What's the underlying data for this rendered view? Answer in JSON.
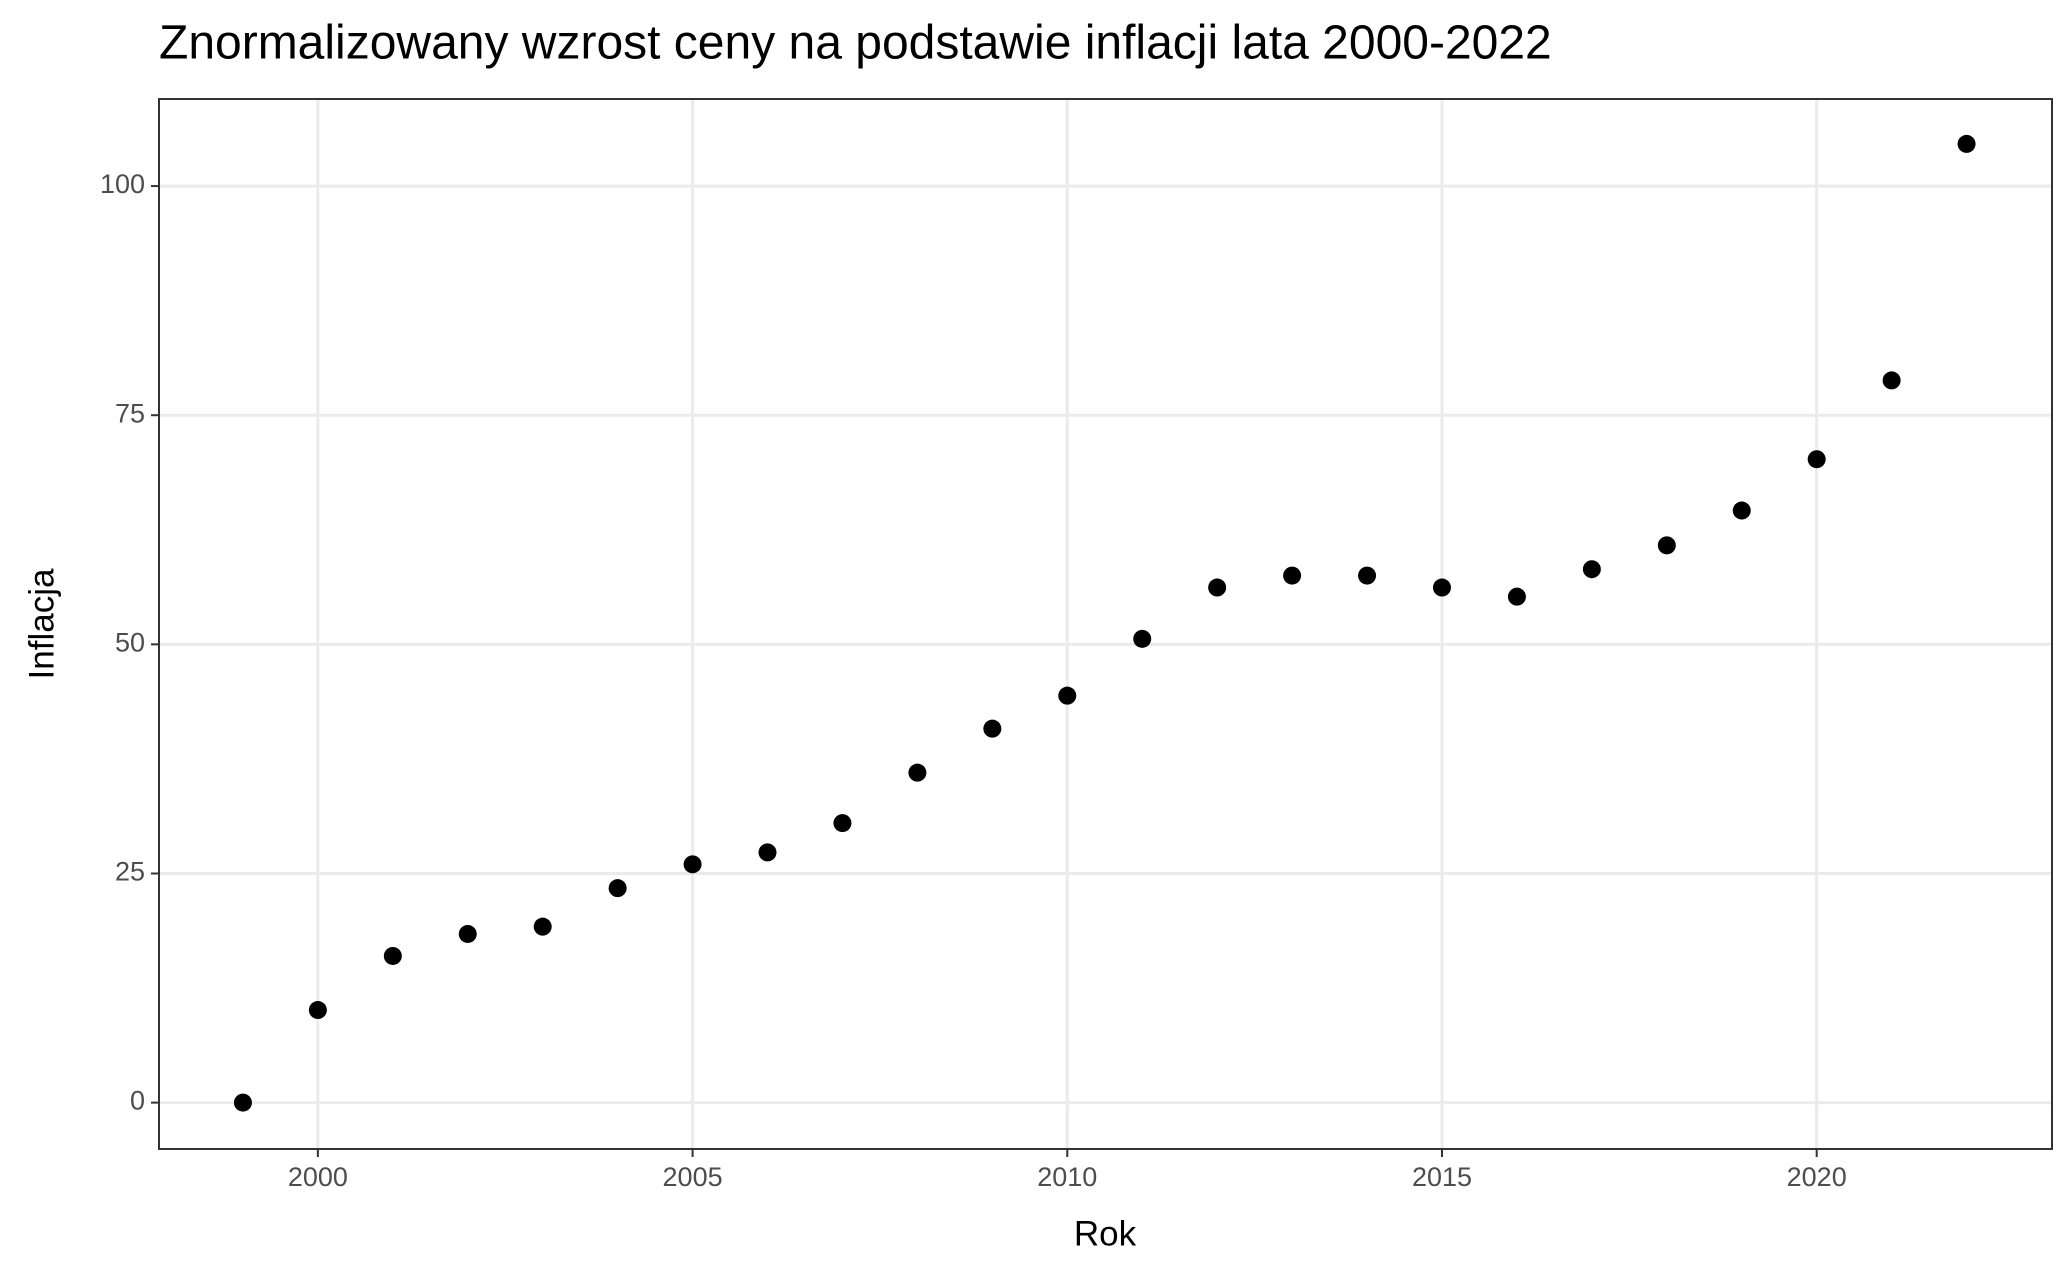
{
  "chart_data": {
    "type": "scatter",
    "title": "Znormalizowany wzrost ceny na podstawie inflacji lata 2000-2022",
    "x_label": "Rok",
    "y_label": "Inflacja",
    "x": [
      1999,
      2000,
      2001,
      2002,
      2003,
      2004,
      2005,
      2006,
      2007,
      2008,
      2009,
      2010,
      2011,
      2012,
      2013,
      2014,
      2015,
      2016,
      2017,
      2018,
      2019,
      2020,
      2021,
      2022
    ],
    "values": [
      0,
      10.1,
      16.0,
      18.4,
      19.2,
      23.4,
      26.0,
      27.3,
      30.5,
      36.0,
      40.8,
      44.4,
      50.6,
      56.2,
      57.5,
      57.5,
      56.2,
      55.2,
      58.2,
      60.8,
      64.6,
      70.2,
      78.8,
      104.6
    ],
    "color": "#000000",
    "xlim": [
      1997.88,
      2023.14
    ],
    "xticks": [
      2000,
      2005,
      2010,
      2015,
      2020
    ],
    "ylim": [
      -5.06,
      109.5
    ],
    "yticks": [
      0,
      25,
      50,
      75,
      100
    ],
    "grid": true
  }
}
